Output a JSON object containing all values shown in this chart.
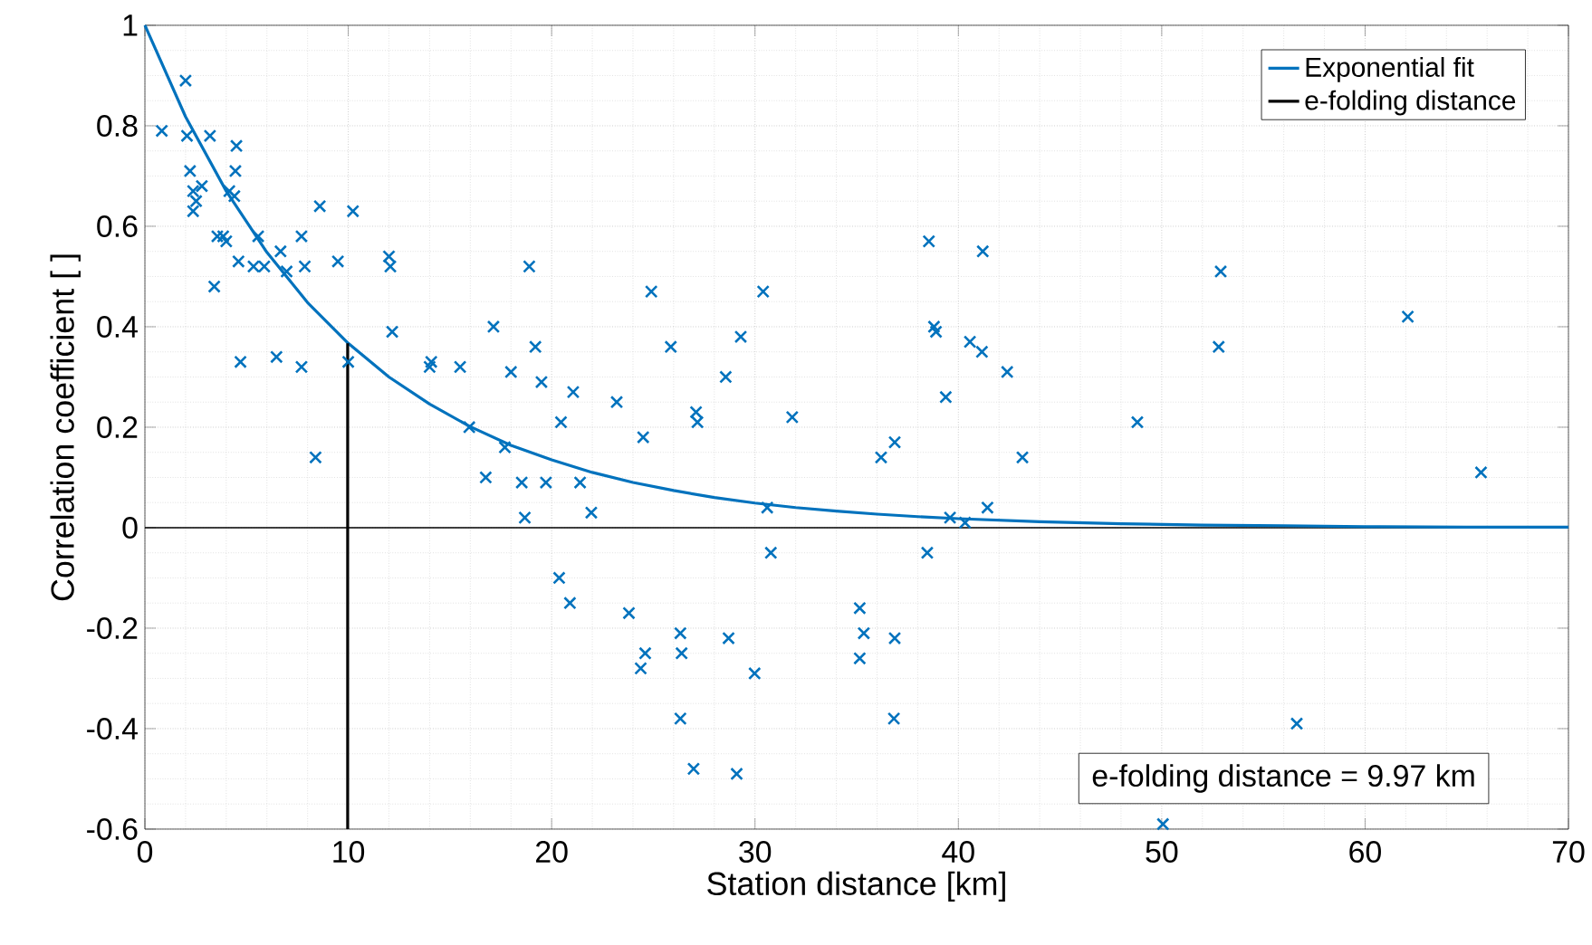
{
  "chart_data": {
    "type": "scatter",
    "xlabel": "Station distance [km]",
    "ylabel": "Correlation coefficient [ ]",
    "xlim": [
      0,
      70
    ],
    "ylim": [
      -0.6,
      1
    ],
    "xticks": [
      0,
      10,
      20,
      30,
      40,
      50,
      60,
      70
    ],
    "yticks": [
      -0.6,
      -0.4,
      -0.2,
      0,
      0.2,
      0.4,
      0.6,
      0.8,
      1
    ],
    "grid": true,
    "legend": "top right",
    "annotations": [
      "e-folding distance = 9.97 km"
    ],
    "ref_lines": [
      {
        "axis": "y",
        "value": 0,
        "color": "#000000"
      }
    ],
    "series": [
      {
        "marker": "cross",
        "color": "#0072bd",
        "x": [
          0.83,
          2.0,
          2.07,
          3.2,
          4.5,
          2.22,
          4.45,
          2.37,
          2.8,
          2.52,
          2.37,
          4.15,
          4.4,
          3.56,
          4.0,
          3.85,
          3.41,
          4.6,
          4.7,
          5.57,
          5.34,
          5.87,
          6.67,
          6.97,
          7.7,
          7.86,
          6.47,
          7.7,
          8.6,
          9.49,
          10.23,
          8.39,
          10.0,
          12.0,
          12.07,
          12.16,
          14.08,
          14.0,
          15.5,
          15.95,
          17.14,
          17.7,
          18.0,
          18.9,
          19.2,
          19.5,
          16.76,
          18.53,
          19.72,
          18.68,
          21.06,
          20.46,
          21.4,
          21.95,
          23.2,
          24.9,
          25.86,
          24.5,
          27.1,
          27.17,
          28.56,
          29.3,
          30.4,
          30.6,
          30.78,
          31.83,
          36.2,
          36.87,
          38.55,
          38.8,
          38.9,
          39.38,
          41.2,
          40.57,
          41.16,
          42.4,
          43.15,
          41.43,
          39.59,
          40.33,
          38.47,
          20.37,
          20.9,
          23.8,
          24.6,
          24.38,
          26.33,
          26.39,
          26.33,
          26.98,
          28.7,
          29.1,
          29.98,
          35.15,
          35.35,
          35.15,
          36.87,
          36.83,
          52.9,
          52.8,
          62.1,
          48.8,
          65.7,
          56.64,
          50.06
        ],
        "values": [
          0.79,
          0.89,
          0.78,
          0.78,
          0.76,
          0.71,
          0.71,
          0.67,
          0.68,
          0.65,
          0.63,
          0.67,
          0.66,
          0.58,
          0.57,
          0.58,
          0.48,
          0.53,
          0.33,
          0.58,
          0.52,
          0.52,
          0.55,
          0.51,
          0.58,
          0.52,
          0.34,
          0.32,
          0.64,
          0.53,
          0.63,
          0.14,
          0.33,
          0.54,
          0.52,
          0.39,
          0.33,
          0.32,
          0.32,
          0.2,
          0.4,
          0.16,
          0.31,
          0.52,
          0.36,
          0.29,
          0.1,
          0.09,
          0.09,
          0.02,
          0.27,
          0.21,
          0.09,
          0.03,
          0.25,
          0.47,
          0.36,
          0.18,
          0.23,
          0.21,
          0.3,
          0.38,
          0.47,
          0.04,
          -0.05,
          0.22,
          0.14,
          0.17,
          0.57,
          0.4,
          0.39,
          0.26,
          0.55,
          0.37,
          0.35,
          0.31,
          0.14,
          0.04,
          0.02,
          0.01,
          -0.05,
          -0.1,
          -0.15,
          -0.17,
          -0.25,
          -0.28,
          -0.21,
          -0.25,
          -0.38,
          -0.48,
          -0.22,
          -0.49,
          -0.29,
          -0.16,
          -0.21,
          -0.26,
          -0.22,
          -0.38,
          0.51,
          0.36,
          0.42,
          0.21,
          0.11,
          -0.39,
          -0.59
        ]
      },
      {
        "type": "line",
        "marker": "none",
        "name": "Exponential fit",
        "color": "#0072bd",
        "x": [
          0,
          2,
          4,
          6,
          8,
          10,
          12,
          14,
          16,
          18,
          20,
          22,
          24,
          26,
          28,
          30,
          32,
          34,
          36,
          38,
          40,
          44,
          48,
          52,
          56,
          60,
          65,
          70
        ],
        "values": [
          1,
          0.818,
          0.67,
          0.548,
          0.448,
          0.367,
          0.3,
          0.246,
          0.201,
          0.164,
          0.135,
          0.11,
          0.09,
          0.074,
          0.06,
          0.049,
          0.04,
          0.033,
          0.027,
          0.022,
          0.018,
          0.012,
          0.008,
          0.005,
          0.004,
          0.002,
          0.001,
          0.001
        ]
      },
      {
        "type": "line",
        "marker": "none",
        "name": "e-folding distance",
        "color": "#000000",
        "x": [
          9.97,
          9.97
        ],
        "values": [
          -0.6,
          0.367
        ]
      }
    ]
  }
}
